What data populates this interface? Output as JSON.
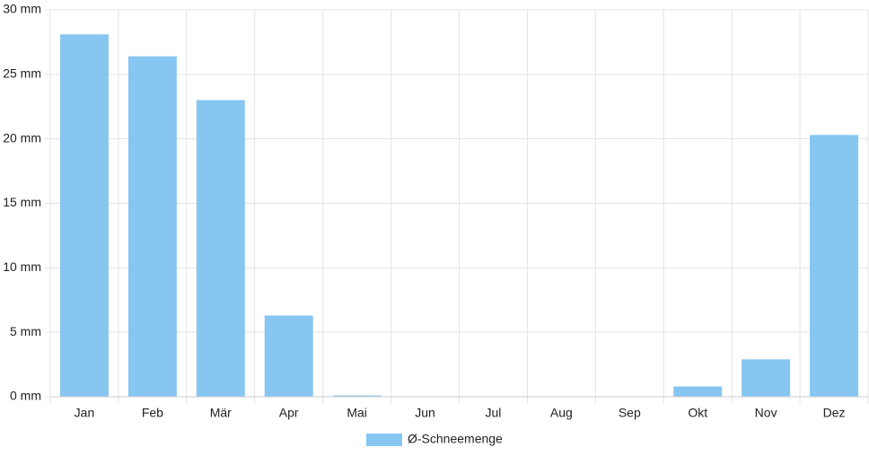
{
  "chart_data": {
    "type": "bar",
    "categories": [
      "Jan",
      "Feb",
      "Mär",
      "Apr",
      "Mai",
      "Jun",
      "Jul",
      "Aug",
      "Sep",
      "Okt",
      "Nov",
      "Dez"
    ],
    "series": [
      {
        "name": "Ø-Schneemenge",
        "color": "#88c6f2",
        "values": [
          28.1,
          26.4,
          23.0,
          6.3,
          0.1,
          0,
          0,
          0,
          0,
          0.8,
          2.9,
          20.3
        ]
      }
    ],
    "ylim": [
      0,
      30
    ],
    "yticks": [
      {
        "value": 0,
        "label": "0 mm"
      },
      {
        "value": 5,
        "label": "5 mm"
      },
      {
        "value": 10,
        "label": "10 mm"
      },
      {
        "value": 15,
        "label": "15 mm"
      },
      {
        "value": 20,
        "label": "20 mm"
      },
      {
        "value": 25,
        "label": "25 mm"
      },
      {
        "value": 30,
        "label": "30 mm"
      }
    ],
    "grid": true,
    "legend": "bottom"
  }
}
